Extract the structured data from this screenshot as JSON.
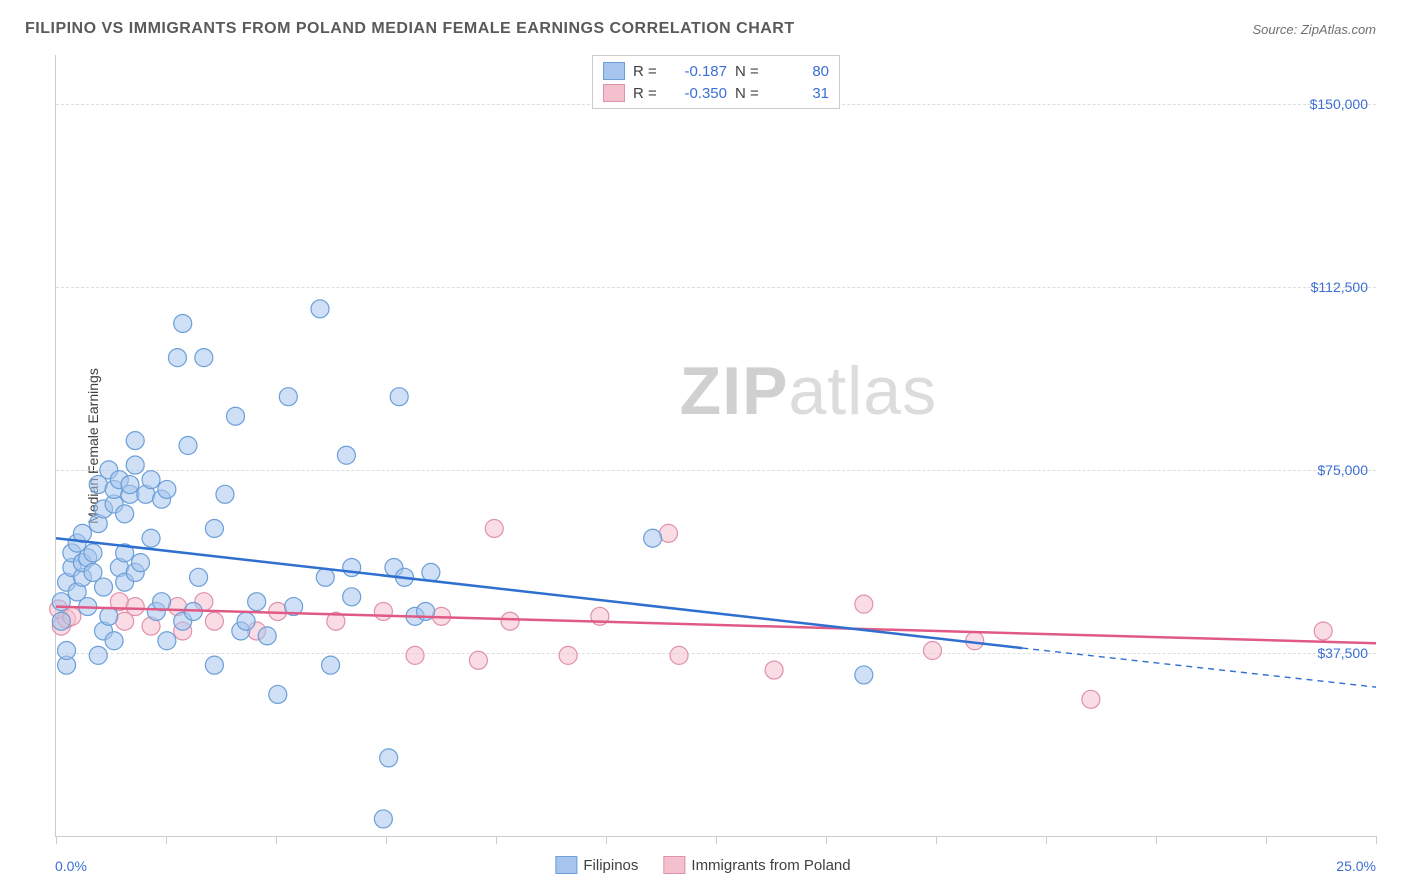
{
  "title": "FILIPINO VS IMMIGRANTS FROM POLAND MEDIAN FEMALE EARNINGS CORRELATION CHART",
  "source": "Source: ZipAtlas.com",
  "watermark_a": "ZIP",
  "watermark_b": "atlas",
  "y_axis_label": "Median Female Earnings",
  "chart": {
    "type": "scatter",
    "xlim": [
      0,
      25
    ],
    "ylim": [
      0,
      160000
    ],
    "x_ticks_pct": [
      0,
      2.08,
      4.17,
      6.25,
      8.33,
      10.42,
      12.5,
      14.58,
      16.67,
      18.75,
      20.83,
      22.92,
      25
    ],
    "x_tick_labels": {
      "0": "0.0%",
      "25": "25.0%"
    },
    "y_gridlines": [
      37500,
      75000,
      112500,
      150000
    ],
    "y_tick_labels": {
      "37500": "$37,500",
      "75000": "$75,000",
      "112500": "$112,500",
      "150000": "$150,000"
    },
    "marker_radius": 9,
    "marker_opacity": 0.55,
    "marker_stroke_width": 1.2,
    "background_color": "#ffffff",
    "grid_color": "#dddddd",
    "axis_color": "#cccccc"
  },
  "series": {
    "filipinos": {
      "label": "Filipinos",
      "R": "-0.187",
      "N": "80",
      "fill_color": "#a7c5ec",
      "stroke_color": "#6b9fd8",
      "line_color": "#2f6fd0",
      "line_width": 2.5,
      "trend_start": [
        0,
        61000
      ],
      "trend_end_solid": [
        18.3,
        38500
      ],
      "trend_end_dashed": [
        25,
        30500
      ],
      "points": [
        [
          0.1,
          44000
        ],
        [
          0.1,
          48000
        ],
        [
          0.2,
          35000
        ],
        [
          0.2,
          38000
        ],
        [
          0.2,
          52000
        ],
        [
          0.3,
          55000
        ],
        [
          0.3,
          58000
        ],
        [
          0.4,
          50000
        ],
        [
          0.4,
          60000
        ],
        [
          0.5,
          53000
        ],
        [
          0.5,
          56000
        ],
        [
          0.5,
          62000
        ],
        [
          0.6,
          47000
        ],
        [
          0.6,
          57000
        ],
        [
          0.7,
          54000
        ],
        [
          0.7,
          58000
        ],
        [
          0.8,
          37000
        ],
        [
          0.8,
          64000
        ],
        [
          0.8,
          72000
        ],
        [
          0.9,
          42000
        ],
        [
          0.9,
          51000
        ],
        [
          0.9,
          67000
        ],
        [
          1.0,
          45000
        ],
        [
          1.0,
          75000
        ],
        [
          1.1,
          40000
        ],
        [
          1.1,
          68000
        ],
        [
          1.1,
          71000
        ],
        [
          1.2,
          55000
        ],
        [
          1.2,
          73000
        ],
        [
          1.3,
          52000
        ],
        [
          1.3,
          58000
        ],
        [
          1.3,
          66000
        ],
        [
          1.4,
          70000
        ],
        [
          1.4,
          72000
        ],
        [
          1.5,
          54000
        ],
        [
          1.5,
          76000
        ],
        [
          1.5,
          81000
        ],
        [
          1.6,
          56000
        ],
        [
          1.7,
          70000
        ],
        [
          1.8,
          61000
        ],
        [
          1.8,
          73000
        ],
        [
          1.9,
          46000
        ],
        [
          2.0,
          48000
        ],
        [
          2.0,
          69000
        ],
        [
          2.1,
          40000
        ],
        [
          2.1,
          71000
        ],
        [
          2.3,
          98000
        ],
        [
          2.4,
          105000
        ],
        [
          2.4,
          44000
        ],
        [
          2.5,
          80000
        ],
        [
          2.6,
          46000
        ],
        [
          2.7,
          53000
        ],
        [
          2.8,
          98000
        ],
        [
          3.0,
          35000
        ],
        [
          3.0,
          63000
        ],
        [
          3.2,
          70000
        ],
        [
          3.4,
          86000
        ],
        [
          3.5,
          42000
        ],
        [
          3.6,
          44000
        ],
        [
          3.8,
          48000
        ],
        [
          4.0,
          41000
        ],
        [
          4.2,
          29000
        ],
        [
          4.4,
          90000
        ],
        [
          4.5,
          47000
        ],
        [
          5.0,
          108000
        ],
        [
          5.1,
          53000
        ],
        [
          5.2,
          35000
        ],
        [
          5.5,
          78000
        ],
        [
          5.6,
          55000
        ],
        [
          5.6,
          49000
        ],
        [
          6.2,
          3500
        ],
        [
          6.3,
          16000
        ],
        [
          6.4,
          55000
        ],
        [
          6.5,
          90000
        ],
        [
          6.6,
          53000
        ],
        [
          6.8,
          45000
        ],
        [
          7.0,
          46000
        ],
        [
          7.1,
          54000
        ],
        [
          11.3,
          61000
        ],
        [
          15.3,
          33000
        ]
      ]
    },
    "poland": {
      "label": "Immigrants from Poland",
      "R": "-0.350",
      "N": "31",
      "fill_color": "#f5c0ce",
      "stroke_color": "#e091ab",
      "line_color": "#e05a85",
      "line_width": 2.5,
      "trend_start": [
        0,
        47000
      ],
      "trend_end_solid": [
        25,
        39500
      ],
      "points": [
        [
          0.05,
          46500
        ],
        [
          0.1,
          43000
        ],
        [
          0.2,
          44500
        ],
        [
          0.3,
          45000
        ],
        [
          1.2,
          48000
        ],
        [
          1.3,
          44000
        ],
        [
          1.5,
          47000
        ],
        [
          1.8,
          43000
        ],
        [
          2.3,
          47000
        ],
        [
          2.4,
          42000
        ],
        [
          2.8,
          48000
        ],
        [
          3.0,
          44000
        ],
        [
          3.8,
          42000
        ],
        [
          4.2,
          46000
        ],
        [
          5.3,
          44000
        ],
        [
          6.2,
          46000
        ],
        [
          6.8,
          37000
        ],
        [
          7.3,
          45000
        ],
        [
          8.0,
          36000
        ],
        [
          8.3,
          63000
        ],
        [
          8.6,
          44000
        ],
        [
          9.7,
          37000
        ],
        [
          10.3,
          45000
        ],
        [
          11.6,
          62000
        ],
        [
          11.8,
          37000
        ],
        [
          13.6,
          34000
        ],
        [
          15.3,
          47500
        ],
        [
          16.6,
          38000
        ],
        [
          17.4,
          40000
        ],
        [
          19.6,
          28000
        ],
        [
          24.0,
          42000
        ]
      ]
    }
  },
  "legend_top": {
    "R_label": "R =",
    "N_label": "N ="
  }
}
